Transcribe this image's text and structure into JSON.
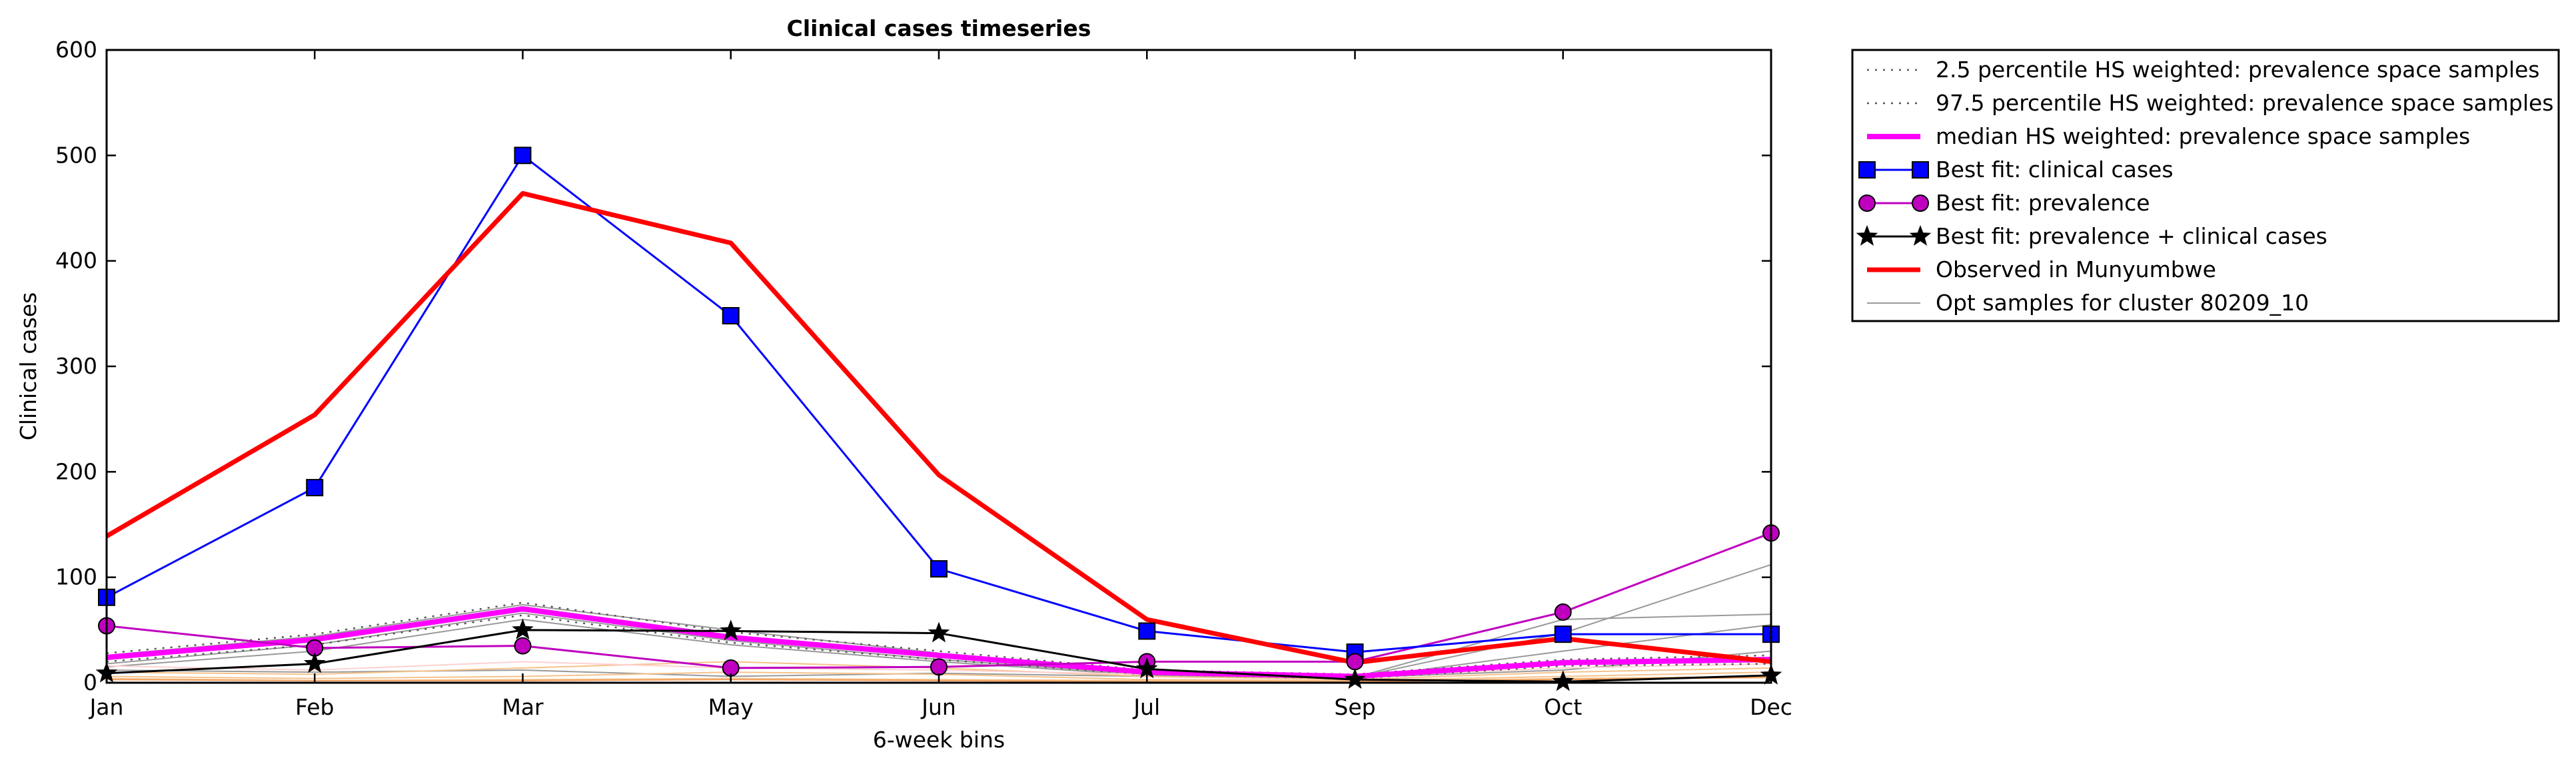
{
  "chart_data": {
    "type": "line",
    "title": "Clinical cases timeseries",
    "xlabel": "6-week bins",
    "ylabel": "Clinical cases",
    "categories": [
      "Jan",
      "Feb",
      "Mar",
      "May",
      "Jun",
      "Jul",
      "Sep",
      "Oct",
      "Dec"
    ],
    "ylim": [
      0,
      600
    ],
    "yticks": [
      0,
      100,
      200,
      300,
      400,
      500,
      600
    ],
    "grid": false,
    "legend_position": "outside-top-right",
    "series": [
      {
        "name": "2.5 percentile HS weighted: prevalence space samples",
        "color": "#555555",
        "style": "dotted",
        "values": [
          20,
          36,
          64,
          38,
          22,
          8,
          4,
          16,
          18
        ]
      },
      {
        "name": "97.5 percentile HS weighted: prevalence space samples",
        "color": "#555555",
        "style": "dotted",
        "values": [
          28,
          46,
          76,
          48,
          30,
          12,
          8,
          22,
          26
        ]
      },
      {
        "name": "median HS weighted: prevalence space samples",
        "color": "#ff00ff",
        "style": "solid-thick",
        "values": [
          24,
          41,
          70,
          43,
          26,
          10,
          6,
          19,
          22
        ]
      },
      {
        "name": "Best fit: clinical cases",
        "color": "#0000ff",
        "style": "solid",
        "marker": "square",
        "values": [
          81,
          185,
          500,
          348,
          108,
          49,
          29,
          46,
          46
        ]
      },
      {
        "name": "Best fit: prevalence",
        "color": "#bf00bf",
        "style": "solid",
        "marker": "circle",
        "values": [
          54,
          33,
          35,
          14,
          15,
          20,
          20,
          67,
          142
        ]
      },
      {
        "name": "Best fit: prevalence + clinical cases",
        "color": "#000000",
        "style": "solid",
        "marker": "star",
        "values": [
          9,
          18,
          50,
          49,
          47,
          13,
          3,
          1,
          7
        ]
      },
      {
        "name": "Observed in Munyumbwe",
        "color": "#ff0000",
        "style": "solid-thick",
        "values": [
          139,
          254,
          464,
          417,
          197,
          60,
          19,
          42,
          20
        ]
      },
      {
        "name": "Opt samples for cluster 80209_10",
        "color": "#999999",
        "style": "thin",
        "values": [
          22,
          40,
          72,
          45,
          24,
          9,
          5,
          47,
          112
        ]
      }
    ],
    "background_series": [
      {
        "color": "#999999",
        "values": [
          18,
          36,
          66,
          40,
          22,
          8,
          5,
          60,
          65
        ]
      },
      {
        "color": "#999999",
        "values": [
          15,
          30,
          60,
          36,
          20,
          7,
          4,
          30,
          55
        ]
      },
      {
        "color": "#999999",
        "values": [
          26,
          44,
          74,
          50,
          28,
          11,
          7,
          20,
          24
        ]
      },
      {
        "color": "#999999",
        "values": [
          12,
          10,
          12,
          6,
          9,
          6,
          5,
          12,
          30
        ]
      },
      {
        "color": "#f5c28a",
        "values": [
          10,
          8,
          14,
          20,
          14,
          6,
          3,
          10,
          14
        ]
      },
      {
        "color": "#f5c28a",
        "values": [
          6,
          4,
          6,
          10,
          8,
          3,
          2,
          6,
          10
        ]
      },
      {
        "color": "#f5c28a",
        "values": [
          4,
          2,
          3,
          4,
          3,
          2,
          1,
          4,
          6
        ]
      },
      {
        "color": "#f0a060",
        "values": [
          3,
          2,
          2,
          3,
          2,
          1,
          1,
          3,
          5
        ]
      },
      {
        "color": "#ffd0d0",
        "values": [
          16,
          12,
          20,
          14,
          12,
          8,
          6,
          14,
          18
        ]
      }
    ]
  }
}
